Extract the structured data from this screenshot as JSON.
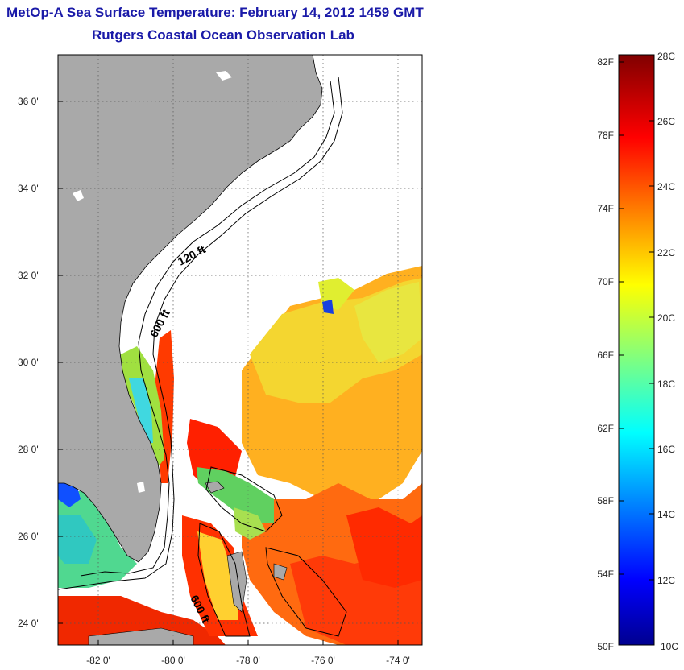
{
  "header": {
    "title": "MetOp-A Sea Surface Temperature:  February 14, 2012 1459 GMT",
    "subtitle": "Rutgers Coastal Ocean Observation Lab"
  },
  "map": {
    "lon_range": [
      -83,
      -73
    ],
    "lat_range": [
      23,
      37
    ],
    "lon_ticks": [
      "-82 0'",
      "-80 0'",
      "-78 0'",
      "-76 0'",
      "-74 0'"
    ],
    "lat_ticks": [
      "36 0'",
      "34 0'",
      "32 0'",
      "30 0'",
      "28 0'",
      "26 0'",
      "24 0'"
    ],
    "land_color": "#a9a9a9",
    "contour_labels": [
      "120 ft",
      "600 ft",
      "600 ft"
    ]
  },
  "colorbar": {
    "f_labels": [
      "82F",
      "78F",
      "74F",
      "70F",
      "66F",
      "62F",
      "58F",
      "54F",
      "50F"
    ],
    "c_labels": [
      "28C",
      "26C",
      "24C",
      "22C",
      "20C",
      "18C",
      "16C",
      "14C",
      "12C",
      "10C"
    ],
    "range_c": [
      10,
      28
    ],
    "colormap": "jet"
  }
}
